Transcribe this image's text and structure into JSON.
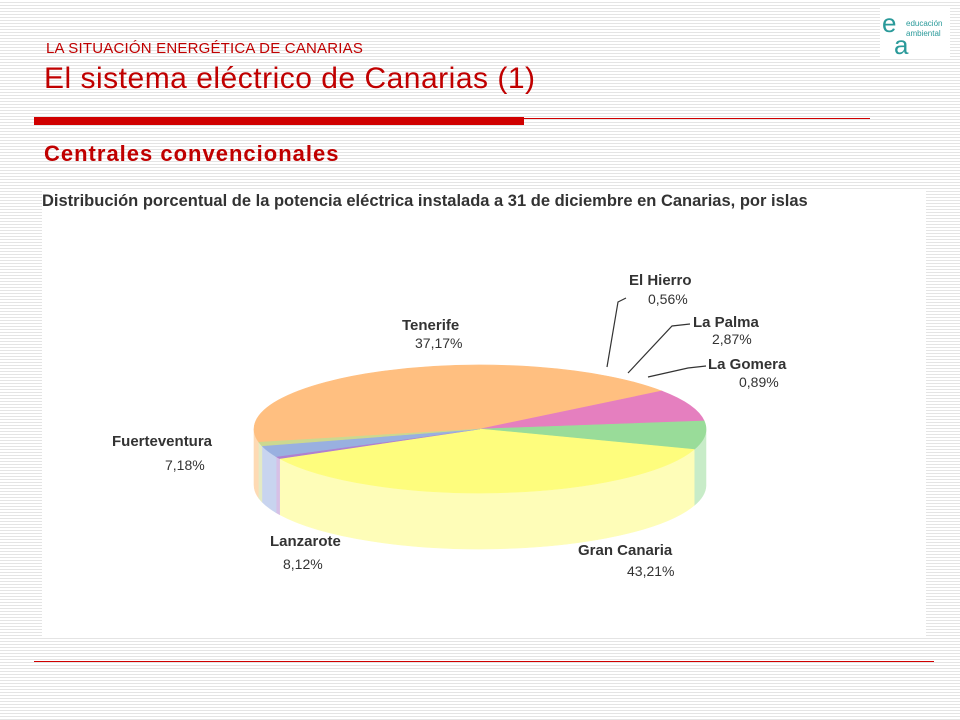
{
  "header": {
    "kicker": "LA SITUACIÓN ENERGÉTICA DE CANARIAS",
    "title": "El sistema eléctrico de Canarias (1)",
    "subtitle": "Centrales convencionales"
  },
  "logo": {
    "icon": "educacion-ambiental-logo-icon",
    "line1": "educación",
    "line2": "ambiental",
    "color": "#2a9a9a"
  },
  "chart_data": {
    "type": "pie",
    "title": "Distribución porcentual de la potencia eléctrica instalada a 31 de diciembre en Canarias, por islas",
    "slices": [
      {
        "label": "Gran Canaria",
        "value_label": "43,21%",
        "value": 43.21,
        "color": "#ffbf80",
        "side": "#fedab4"
      },
      {
        "label": "Lanzarote",
        "value_label": "8,12%",
        "value": 8.12,
        "color": "#e57fbf",
        "side": "#f2b8d9"
      },
      {
        "label": "Fuerteventura",
        "value_label": "7,18%",
        "value": 7.18,
        "color": "#99dc99",
        "side": "#c8ecc8"
      },
      {
        "label": "Tenerife",
        "value_label": "37,17%",
        "value": 37.17,
        "color": "#fefd7d",
        "side": "#fefdb8"
      },
      {
        "label": "El Hierro",
        "value_label": "0,56%",
        "value": 0.56,
        "color": "#b080d0",
        "side": "#d6c0e6"
      },
      {
        "label": "La Palma",
        "value_label": "2,87%",
        "value": 2.87,
        "color": "#99b0e0",
        "side": "#c8d4ef"
      },
      {
        "label": "La Gomera",
        "value_label": "0,89%",
        "value": 0.89,
        "color": "#ccd890",
        "side": "#e4eac4"
      }
    ]
  }
}
